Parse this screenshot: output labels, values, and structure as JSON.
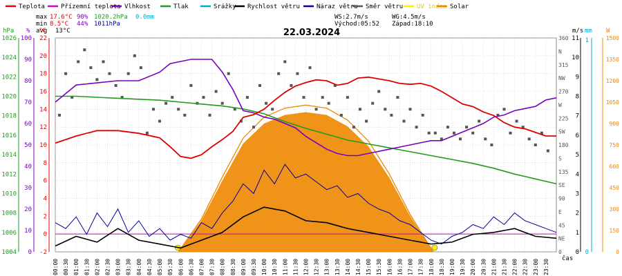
{
  "chart_data": {
    "type": "line",
    "title": "22.03.2024",
    "legend": [
      {
        "name": "Teplota",
        "color": "#dd0000"
      },
      {
        "name": "Přízemní teplota",
        "color": "#cc00cc"
      },
      {
        "name": "Vlhkost",
        "color": "#7700bb"
      },
      {
        "name": "Tlak",
        "color": "#229922"
      },
      {
        "name": "Srážky",
        "color": "#00aacc"
      },
      {
        "name": "Rychlost větru",
        "color": "#000000"
      },
      {
        "name": "Náraz větru",
        "color": "#000099"
      },
      {
        "name": "Směr větru",
        "color": "#555555"
      },
      {
        "name": "UV index",
        "color": "#ffee00"
      },
      {
        "name": "Solar",
        "color": "#ee8800"
      }
    ],
    "stats": {
      "max_label": "max",
      "max_temp": "17.6°C",
      "max_hum": "90%",
      "max_press": "1020.2hPa",
      "max_rain": "0.0mm",
      "min_label": "min",
      "min_temp": "8.5°C",
      "min_hum": "44%",
      "min_press": "1011hPa",
      "avg_label": "avg",
      "avg_temp": "13°C",
      "ws": "WS:2.7m/s",
      "wg": "WG:4.5m/s",
      "sunrise": "Východ:05:52",
      "sunset": "Západ:18:10"
    },
    "axis_units": {
      "press": "hPa",
      "hum": "%",
      "temp": "°C",
      "wind": "m/s",
      "rain": "mm",
      "solar": "W",
      "time": "čas"
    },
    "axes": {
      "press_ticks": [
        "1026",
        "1024",
        "1022",
        "1020",
        "1018",
        "1016",
        "1014",
        "1012",
        "1010",
        "1008",
        "1006",
        "1004"
      ],
      "hum_ticks": [
        "100",
        "90",
        "80",
        "70",
        "60",
        "50",
        "40",
        "30",
        "20",
        "10",
        "0"
      ],
      "temp_ticks": [
        "22",
        "20",
        "18",
        "16",
        "14",
        "12",
        "10",
        "8",
        "6",
        "4",
        "2",
        "0",
        "-2"
      ],
      "dir_ticks": [
        "360",
        "N",
        "315",
        "NW",
        "270",
        "W",
        "225",
        "SW",
        "180",
        "S",
        "135",
        "SE",
        "90",
        "E",
        "45",
        "NE",
        "0"
      ],
      "wind_ticks": [
        "11",
        "10",
        "9",
        "8",
        "7",
        "6",
        "5",
        "4",
        "3",
        "2",
        "1",
        "0"
      ],
      "rain_ticks": [
        "1",
        "0"
      ],
      "solar_ticks": [
        "1500",
        "1350",
        "1200",
        "1050",
        "900",
        "750",
        "600",
        "450",
        "300",
        "150",
        "0"
      ],
      "x_ticks": [
        "00:00",
        "00:30",
        "01:00",
        "01:30",
        "02:00",
        "02:30",
        "03:00",
        "03:30",
        "04:00",
        "04:30",
        "05:00",
        "05:30",
        "06:00",
        "06:30",
        "07:00",
        "07:30",
        "08:00",
        "08:30",
        "09:00",
        "09:30",
        "10:00",
        "10:30",
        "11:00",
        "11:30",
        "12:00",
        "12:30",
        "13:00",
        "13:30",
        "14:00",
        "14:30",
        "15:00",
        "15:30",
        "16:00",
        "16:30",
        "17:00",
        "17:30",
        "18:00",
        "18:30",
        "19:00",
        "19:30",
        "20:00",
        "20:30",
        "21:00",
        "21:30",
        "22:00",
        "22:30",
        "23:00",
        "23:30"
      ],
      "temp_range": [
        -2,
        22
      ],
      "press_range": [
        1004,
        1026
      ],
      "hum_range": [
        0,
        100
      ],
      "wind_range": [
        0,
        11
      ],
      "solar_range": [
        0,
        1500
      ]
    },
    "series": [
      {
        "name": "Teplota",
        "key": "temp",
        "axis": "temp",
        "color": "#dd0000",
        "x": [
          0,
          1,
          2,
          3,
          4,
          5,
          5.5,
          6,
          6.5,
          7,
          7.5,
          8,
          8.5,
          9,
          9.5,
          10,
          10.5,
          11,
          11.5,
          12,
          12.5,
          13,
          13.5,
          14,
          14.5,
          15,
          15.5,
          16,
          16.5,
          17,
          17.5,
          18,
          18.5,
          19,
          19.5,
          20,
          20.5,
          21,
          21.5,
          22,
          22.5,
          23,
          23.5,
          24
        ],
        "y": [
          10.2,
          11,
          11.6,
          11.6,
          11.3,
          10.8,
          9.8,
          8.7,
          8.5,
          8.9,
          9.8,
          10.6,
          11.5,
          13.1,
          13.4,
          14,
          15,
          15.9,
          16.6,
          17,
          17.3,
          17.2,
          16.7,
          16.9,
          17.5,
          17.6,
          17.4,
          17.2,
          16.9,
          16.8,
          16.9,
          16.6,
          16,
          15.3,
          14.6,
          14.3,
          13.7,
          13.3,
          12.5,
          12,
          11.8,
          11.4,
          11,
          11
        ]
      },
      {
        "name": "Vlhkost",
        "key": "hum",
        "axis": "hum",
        "color": "#7700bb",
        "x": [
          0,
          1,
          2,
          3,
          4,
          5,
          5.5,
          6,
          6.5,
          7,
          7.5,
          8,
          8.5,
          9,
          9.5,
          10,
          10.5,
          11,
          11.5,
          12,
          12.5,
          13,
          13.5,
          14,
          14.5,
          15,
          15.5,
          16,
          16.5,
          17,
          17.5,
          18,
          18.5,
          19,
          19.5,
          20,
          20.5,
          21,
          21.5,
          22,
          22.5,
          23,
          23.5,
          24
        ],
        "y": [
          70,
          78,
          79,
          80,
          80,
          84,
          88,
          89,
          90,
          90,
          90,
          84,
          76,
          66,
          65,
          63,
          62,
          60,
          58,
          54,
          51,
          48,
          46,
          45,
          45,
          46,
          47,
          48,
          49,
          50,
          51,
          52,
          52,
          54,
          56,
          58,
          60,
          63,
          64,
          66,
          67,
          68,
          71,
          72
        ]
      },
      {
        "name": "Tlak",
        "key": "press",
        "axis": "press",
        "color": "#229922",
        "x": [
          0,
          1,
          2,
          3,
          4,
          5,
          6,
          7,
          8,
          9,
          10,
          11,
          12,
          13,
          14,
          15,
          16,
          17,
          18,
          19,
          20,
          21,
          22,
          23,
          24
        ],
        "y": [
          1020,
          1020,
          1019.9,
          1019.8,
          1019.7,
          1019.6,
          1019.4,
          1019.2,
          1019,
          1018.7,
          1018.2,
          1017.4,
          1016.7,
          1016.1,
          1015.5,
          1015.1,
          1014.7,
          1014.3,
          1013.9,
          1013.5,
          1013.1,
          1012.6,
          1012,
          1011.5,
          1011
        ]
      },
      {
        "name": "Solar",
        "key": "solar",
        "axis": "solar",
        "color": "#ee8800",
        "x": [
          5.9,
          7,
          8,
          9,
          10,
          11,
          12,
          13,
          14,
          15,
          16,
          17,
          18.1
        ],
        "y": [
          0,
          220,
          500,
          760,
          900,
          960,
          980,
          960,
          880,
          740,
          520,
          250,
          0
        ]
      },
      {
        "name": "Rychlost větru",
        "key": "wind",
        "axis": "wind",
        "color": "#000000",
        "x": [
          0,
          1,
          2,
          3,
          4,
          5,
          6,
          7,
          8,
          9,
          10,
          11,
          12,
          13,
          14,
          15,
          16,
          17,
          18,
          19,
          20,
          21,
          22,
          23,
          24
        ],
        "y": [
          0.3,
          0.8,
          0.5,
          1.2,
          0.6,
          0.4,
          0.2,
          0.6,
          1.0,
          1.8,
          2.3,
          2.1,
          1.6,
          1.5,
          1.2,
          1.0,
          0.8,
          0.6,
          0.4,
          0.5,
          0.9,
          1.0,
          1.2,
          0.8,
          0.7
        ]
      },
      {
        "name": "Náraz větru",
        "key": "gust",
        "axis": "wind",
        "color": "#000099",
        "x": [
          0,
          0.5,
          1,
          1.5,
          2,
          2.5,
          3,
          3.5,
          4,
          4.5,
          5,
          5.5,
          6,
          6.5,
          7,
          7.5,
          8,
          8.5,
          9,
          9.5,
          10,
          10.5,
          11,
          11.5,
          12,
          12.5,
          13,
          13.5,
          14,
          14.5,
          15,
          15.5,
          16,
          16.5,
          17,
          17.5,
          18,
          18.5,
          19,
          19.5,
          20,
          20.5,
          21,
          21.5,
          22,
          22.5,
          23,
          23.5,
          24
        ],
        "y": [
          1.5,
          1.2,
          1.8,
          0.9,
          2.0,
          1.3,
          2.2,
          1.0,
          1.6,
          0.8,
          1.2,
          0.6,
          0.9,
          0.7,
          1.5,
          1.2,
          2.0,
          2.6,
          3.5,
          3.0,
          4.2,
          3.5,
          4.5,
          3.8,
          4.0,
          3.6,
          3.2,
          3.4,
          2.8,
          3.0,
          2.5,
          2.2,
          2.0,
          1.6,
          1.4,
          1.0,
          0.6,
          0.4,
          0.8,
          1.0,
          1.4,
          1.2,
          1.8,
          1.4,
          2.0,
          1.6,
          1.4,
          1.2,
          1.0
        ]
      },
      {
        "name": "Směr větru",
        "key": "dir",
        "axis": "dir",
        "color": "#555555",
        "x": [
          0.2,
          0.5,
          0.8,
          1.1,
          1.4,
          1.7,
          2,
          2.3,
          2.6,
          2.9,
          3.2,
          3.5,
          3.8,
          4.1,
          4.4,
          4.7,
          5,
          5.3,
          5.6,
          5.9,
          6.2,
          6.5,
          6.8,
          7.1,
          7.4,
          7.7,
          8,
          8.3,
          8.6,
          8.9,
          9.2,
          9.5,
          9.8,
          10.1,
          10.4,
          10.7,
          11,
          11.3,
          11.6,
          11.9,
          12.2,
          12.5,
          12.8,
          13.1,
          13.4,
          13.7,
          14,
          14.3,
          14.6,
          14.9,
          15.2,
          15.5,
          15.8,
          16.1,
          16.4,
          16.7,
          17,
          17.3,
          17.6,
          17.9,
          18.2,
          18.5,
          18.8,
          19.1,
          19.4,
          19.7,
          20,
          20.3,
          20.6,
          20.9,
          21.2,
          21.5,
          21.8,
          22.1,
          22.4,
          22.7,
          23,
          23.3,
          23.6
        ],
        "y": [
          230,
          300,
          260,
          320,
          340,
          310,
          290,
          320,
          300,
          280,
          260,
          300,
          330,
          310,
          200,
          240,
          220,
          250,
          260,
          240,
          230,
          280,
          250,
          260,
          230,
          270,
          250,
          300,
          240,
          220,
          260,
          210,
          280,
          250,
          240,
          300,
          320,
          280,
          300,
          260,
          310,
          240,
          260,
          250,
          280,
          230,
          260,
          210,
          240,
          220,
          250,
          270,
          240,
          230,
          260,
          220,
          240,
          210,
          230,
          200,
          200,
          190,
          210,
          200,
          190,
          210,
          200,
          220,
          190,
          180,
          230,
          240,
          200,
          220,
          210,
          190,
          180,
          200,
          170
        ]
      }
    ],
    "grid": true,
    "legend_placement": "top"
  }
}
